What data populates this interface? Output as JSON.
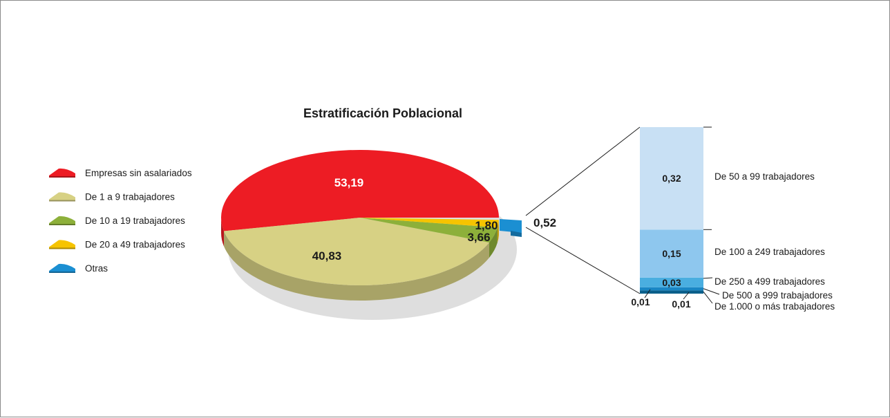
{
  "chart_data": [
    {
      "type": "pie",
      "title": "Estratificación Poblacional",
      "series": [
        {
          "name": "Empresas sin asalariados",
          "value": 53.19,
          "label": "53,19",
          "color": "#ed1c24"
        },
        {
          "name": "De 1 a 9 trabajadores",
          "value": 40.83,
          "label": "40,83",
          "color": "#d7d184"
        },
        {
          "name": "De 10 a 19 trabajadores",
          "value": 3.66,
          "label": "3,66",
          "color": "#8db03a"
        },
        {
          "name": "De 20 a 49 trabajadores",
          "value": 1.8,
          "label": "1,80",
          "color": "#f6c400"
        },
        {
          "name": "Otras",
          "value": 0.52,
          "label": "0,52",
          "color": "#1b8fd2"
        }
      ]
    },
    {
      "type": "bar",
      "stacked": true,
      "categories": [
        "De 50 a 99 trabajadores",
        "De 100 a 249 trabajadores",
        "De 250 a 499 trabajadores",
        "De 500 a 999 trabajadores",
        "De 1.000 o más trabajadores"
      ],
      "values": [
        0.32,
        0.15,
        0.03,
        0.01,
        0.01
      ],
      "labels": [
        "0,32",
        "0,15",
        "0,03",
        "0,01",
        "0,01"
      ],
      "colors": [
        "#c8e0f4",
        "#8ec7ee",
        "#4aaee0",
        "#1a86c4",
        "#0a5f8a"
      ],
      "total_label": "0,52"
    }
  ]
}
